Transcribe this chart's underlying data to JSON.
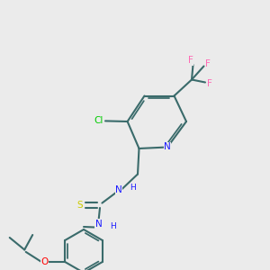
{
  "background_color": "#ebebeb",
  "figsize": [
    3.0,
    3.0
  ],
  "dpi": 100,
  "bond_color": "#3a6b6b",
  "bond_lw": 1.5,
  "atom_colors": {
    "N": "#1a1aff",
    "O": "#ff0000",
    "S": "#cccc00",
    "Cl": "#00cc00",
    "F": "#ff69b4",
    "C": "#3a6b6b",
    "H": "#1a1aff"
  },
  "font_size": 7.5,
  "font_size_small": 6.5
}
